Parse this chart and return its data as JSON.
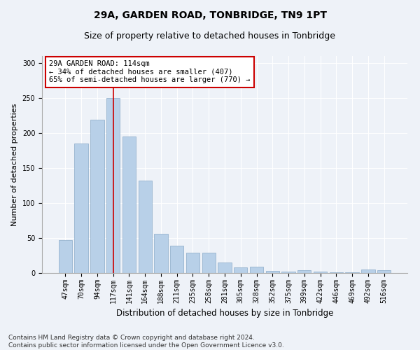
{
  "title": "29A, GARDEN ROAD, TONBRIDGE, TN9 1PT",
  "subtitle": "Size of property relative to detached houses in Tonbridge",
  "xlabel": "Distribution of detached houses by size in Tonbridge",
  "ylabel": "Number of detached properties",
  "categories": [
    "47sqm",
    "70sqm",
    "94sqm",
    "117sqm",
    "141sqm",
    "164sqm",
    "188sqm",
    "211sqm",
    "235sqm",
    "258sqm",
    "281sqm",
    "305sqm",
    "328sqm",
    "352sqm",
    "375sqm",
    "399sqm",
    "422sqm",
    "446sqm",
    "469sqm",
    "492sqm",
    "516sqm"
  ],
  "values": [
    47,
    185,
    219,
    250,
    195,
    132,
    56,
    39,
    29,
    29,
    15,
    8,
    9,
    3,
    2,
    4,
    2,
    1,
    1,
    5,
    4
  ],
  "bar_color": "#b8d0e8",
  "bar_edge_color": "#8aaac8",
  "vline_x": 3,
  "vline_color": "#cc0000",
  "annotation_text": "29A GARDEN ROAD: 114sqm\n← 34% of detached houses are smaller (407)\n65% of semi-detached houses are larger (770) →",
  "annotation_box_color": "#ffffff",
  "annotation_box_edge": "#cc0000",
  "ylim": [
    0,
    310
  ],
  "yticks": [
    0,
    50,
    100,
    150,
    200,
    250,
    300
  ],
  "bg_color": "#eef2f8",
  "grid_color": "#ffffff",
  "footer": "Contains HM Land Registry data © Crown copyright and database right 2024.\nContains public sector information licensed under the Open Government Licence v3.0.",
  "title_fontsize": 10,
  "subtitle_fontsize": 9,
  "xlabel_fontsize": 8.5,
  "ylabel_fontsize": 8,
  "tick_fontsize": 7,
  "footer_fontsize": 6.5,
  "ann_fontsize": 7.5
}
